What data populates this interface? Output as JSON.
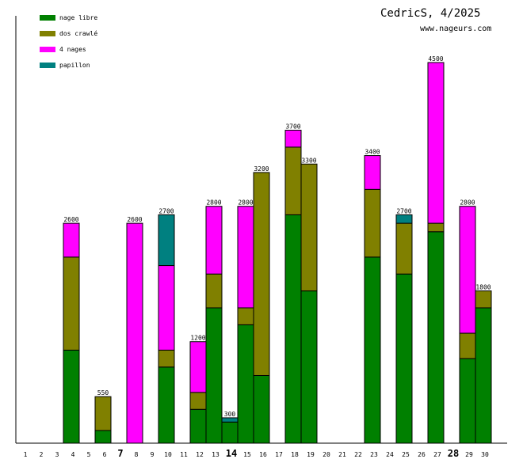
{
  "chart_data": {
    "type": "bar",
    "stacked": true,
    "title": "CedricS, 4/2025",
    "subtitle": "www.nageurs.com",
    "xlabel": "",
    "ylabel": "",
    "ylim": [
      0,
      4500
    ],
    "legend_position": "top-left",
    "categories": [
      "1",
      "2",
      "3",
      "4",
      "5",
      "6",
      "7",
      "8",
      "9",
      "10",
      "11",
      "12",
      "13",
      "14",
      "15",
      "16",
      "17",
      "18",
      "19",
      "20",
      "21",
      "22",
      "23",
      "24",
      "25",
      "26",
      "27",
      "28",
      "29",
      "30"
    ],
    "bold_categories": [
      "7",
      "14",
      "28"
    ],
    "series": [
      {
        "name": "nage libre",
        "color": "#008000",
        "values": [
          0,
          0,
          1100,
          0,
          150,
          0,
          0,
          0,
          900,
          0,
          400,
          1600,
          250,
          1400,
          800,
          0,
          2700,
          1800,
          0,
          0,
          0,
          2200,
          0,
          2000,
          0,
          2500,
          0,
          1000,
          1600,
          0
        ]
      },
      {
        "name": "dos crawlé",
        "color": "#808000",
        "values": [
          0,
          0,
          1100,
          0,
          400,
          0,
          0,
          0,
          200,
          0,
          200,
          400,
          0,
          200,
          2400,
          0,
          800,
          1500,
          0,
          0,
          0,
          800,
          0,
          600,
          0,
          100,
          0,
          300,
          200,
          0
        ]
      },
      {
        "name": "4 nages",
        "color": "#ff00ff",
        "values": [
          0,
          0,
          400,
          0,
          0,
          0,
          2600,
          0,
          1000,
          0,
          600,
          800,
          0,
          1200,
          0,
          0,
          200,
          0,
          0,
          0,
          0,
          400,
          0,
          0,
          0,
          1900,
          0,
          1500,
          0,
          0
        ]
      },
      {
        "name": "papillon",
        "color": "#008080",
        "values": [
          0,
          0,
          0,
          0,
          0,
          0,
          0,
          0,
          600,
          0,
          0,
          0,
          50,
          0,
          0,
          0,
          0,
          0,
          0,
          0,
          0,
          0,
          0,
          100,
          0,
          0,
          0,
          0,
          0,
          0
        ]
      }
    ],
    "totals": [
      0,
      0,
      2600,
      0,
      550,
      0,
      2600,
      0,
      2700,
      0,
      1200,
      2800,
      300,
      2800,
      3200,
      0,
      3700,
      3300,
      0,
      0,
      0,
      3400,
      0,
      2700,
      0,
      4500,
      0,
      2800,
      1800,
      0
    ]
  }
}
